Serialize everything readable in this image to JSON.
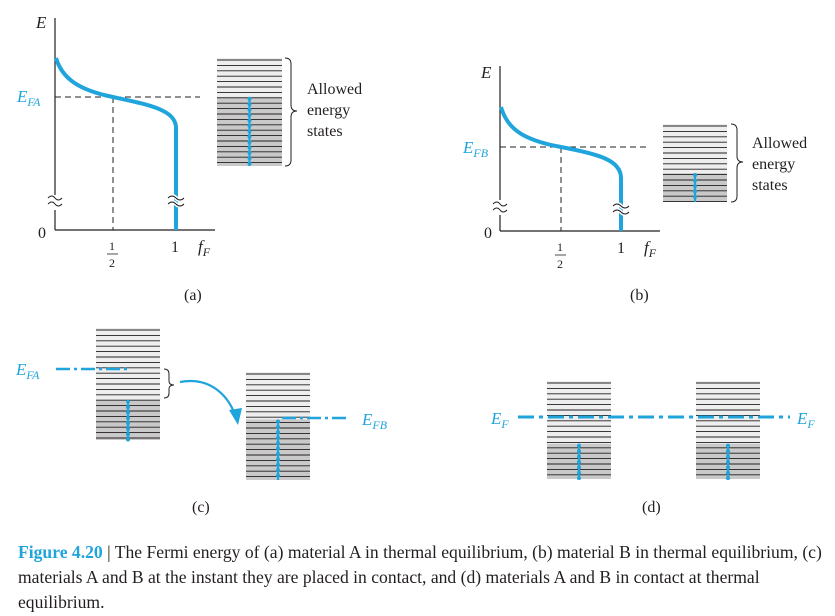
{
  "colors": {
    "accent": "#1fa4dc",
    "text": "#231f20",
    "band_dark": "#c9c9c9",
    "band_light": "#eeeeee"
  },
  "panel_a": {
    "axis_e": "E",
    "efa_label": "E",
    "efa_sub": "FA",
    "zero": "0",
    "half_num": "1",
    "half_den": "2",
    "one": "1",
    "ff_main": "f",
    "ff_sub": "F",
    "bracket_text": [
      "Allowed",
      "energy",
      "states"
    ],
    "panel_label": "(a)"
  },
  "panel_b": {
    "axis_e": "E",
    "efb_label": "E",
    "efb_sub": "FB",
    "zero": "0",
    "half_num": "1",
    "half_den": "2",
    "one": "1",
    "ff_main": "f",
    "ff_sub": "F",
    "bracket_text": [
      "Allowed",
      "energy",
      "states"
    ],
    "panel_label": "(b)"
  },
  "panel_c": {
    "efa_label": "E",
    "efa_sub": "FA",
    "efb_label": "E",
    "efb_sub": "FB",
    "panel_label": "(c)"
  },
  "panel_d": {
    "ef_left": "E",
    "ef_left_sub": "F",
    "ef_right": "E",
    "ef_right_sub": "F",
    "panel_label": "(d)"
  },
  "caption": {
    "figure_label": "Figure 4.20",
    "separator": " | ",
    "text": "The Fermi energy of (a) material A in thermal equilibrium, (b) material B in thermal equilibrium, (c) materials A and B at the instant they are placed in contact, and (d) materials A and B in contact at thermal equilibrium."
  }
}
